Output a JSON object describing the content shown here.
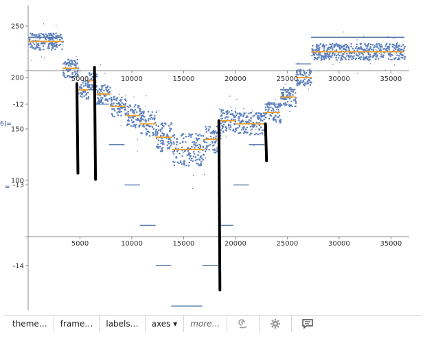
{
  "side_label": "6]=",
  "side_mark": "=",
  "colors": {
    "scatter": "#5b7fbf",
    "mean": "#f0a030",
    "step": "#4a6fa5",
    "annotation": "#000000",
    "axis": "#888888"
  },
  "chart_data": [
    {
      "type": "scatter",
      "title": "",
      "xlabel": "",
      "ylabel": "",
      "xlim": [
        0,
        36500
      ],
      "ylim": [
        94,
        262
      ],
      "y_ticks": [
        {
          "value": 100,
          "label": "100"
        },
        {
          "value": 150,
          "label": "150"
        },
        {
          "value": 200,
          "label": "200"
        },
        {
          "value": 250,
          "label": "250"
        }
      ],
      "x_ticks": [
        {
          "value": 5000,
          "label": "5000"
        },
        {
          "value": 10000,
          "label": "10000"
        },
        {
          "value": 15000,
          "label": "15000"
        },
        {
          "value": 20000,
          "label": "20000"
        },
        {
          "value": 25000,
          "label": "25000"
        },
        {
          "value": 30000,
          "label": "30000"
        },
        {
          "value": 35000,
          "label": "35000"
        }
      ],
      "segments": [
        {
          "x0": 0,
          "x1": 3300,
          "mean": 235,
          "spread": 8
        },
        {
          "x0": 3300,
          "x1": 4800,
          "mean": 209,
          "spread": 9
        },
        {
          "x0": 4800,
          "x1": 5800,
          "mean": 188,
          "spread": 9
        },
        {
          "x0": 5800,
          "x1": 6600,
          "mean": 197,
          "spread": 9
        },
        {
          "x0": 6600,
          "x1": 7900,
          "mean": 184,
          "spread": 9
        },
        {
          "x0": 7900,
          "x1": 9400,
          "mean": 172,
          "spread": 10
        },
        {
          "x0": 9400,
          "x1": 10800,
          "mean": 163,
          "spread": 11
        },
        {
          "x0": 10800,
          "x1": 12300,
          "mean": 155,
          "spread": 12
        },
        {
          "x0": 12300,
          "x1": 13900,
          "mean": 142,
          "spread": 14
        },
        {
          "x0": 13900,
          "x1": 17000,
          "mean": 130,
          "spread": 16
        },
        {
          "x0": 17000,
          "x1": 18500,
          "mean": 140,
          "spread": 13
        },
        {
          "x0": 18500,
          "x1": 20000,
          "mean": 158,
          "spread": 11
        },
        {
          "x0": 20000,
          "x1": 22800,
          "mean": 155,
          "spread": 11
        },
        {
          "x0": 22800,
          "x1": 24300,
          "mean": 166,
          "spread": 10
        },
        {
          "x0": 24300,
          "x1": 25800,
          "mean": 181,
          "spread": 9
        },
        {
          "x0": 25800,
          "x1": 27300,
          "mean": 200,
          "spread": 8
        },
        {
          "x0": 27300,
          "x1": 36300,
          "mean": 225,
          "spread": 8
        }
      ]
    },
    {
      "type": "line",
      "title": "",
      "xlabel": "",
      "ylabel": "",
      "xlim": [
        0,
        36500
      ],
      "ylim": [
        -14.55,
        -11.55
      ],
      "y_ticks": [
        {
          "value": -12,
          "label": "-12"
        },
        {
          "value": -13,
          "label": "-13"
        },
        {
          "value": -14,
          "label": "-14"
        }
      ],
      "x_ticks": [
        {
          "value": 5000,
          "label": "5000"
        },
        {
          "value": 10000,
          "label": "10000"
        },
        {
          "value": 15000,
          "label": "15000"
        },
        {
          "value": 20000,
          "label": "20000"
        },
        {
          "value": 25000,
          "label": "25000"
        },
        {
          "value": 30000,
          "label": "30000"
        },
        {
          "value": 35000,
          "label": "35000"
        }
      ],
      "steps": [
        {
          "x0": 0,
          "x1": 3300,
          "y": -11.17
        },
        {
          "x0": 3300,
          "x1": 4800,
          "y": -11.5
        },
        {
          "x0": 4800,
          "x1": 6300,
          "y": -11.82
        },
        {
          "x0": 6300,
          "x1": 7800,
          "y": -12.0
        },
        {
          "x0": 7800,
          "x1": 9300,
          "y": -12.5
        },
        {
          "x0": 9300,
          "x1": 10800,
          "y": -13.0
        },
        {
          "x0": 10800,
          "x1": 12300,
          "y": -13.5
        },
        {
          "x0": 12300,
          "x1": 13800,
          "y": -14.0
        },
        {
          "x0": 13800,
          "x1": 16800,
          "y": -14.5
        },
        {
          "x0": 16800,
          "x1": 18300,
          "y": -14.0
        },
        {
          "x0": 18300,
          "x1": 19800,
          "y": -13.5
        },
        {
          "x0": 19800,
          "x1": 21300,
          "y": -13.0
        },
        {
          "x0": 21300,
          "x1": 22800,
          "y": -12.5
        },
        {
          "x0": 22800,
          "x1": 24300,
          "y": -12.0
        },
        {
          "x0": 24300,
          "x1": 25800,
          "y": -11.82
        },
        {
          "x0": 25800,
          "x1": 27300,
          "y": -11.5
        },
        {
          "x0": 27300,
          "x1": 36300,
          "y": -11.17
        }
      ]
    }
  ],
  "annotations": {
    "drawn_lines": [
      {
        "x": 4700,
        "y_top": 194,
        "y_bottom": 107
      },
      {
        "x": 6400,
        "y_top": 210,
        "y_bottom": 101
      },
      {
        "x": 18400,
        "y_top": 158,
        "y_bottom": -14.3
      },
      {
        "x": 22900,
        "y_top": 155,
        "y_bottom": -12.7
      }
    ]
  },
  "toolbar": {
    "buttons": [
      "theme…",
      "frame…",
      "labels…",
      "axes ▾",
      "more…"
    ],
    "icons": [
      "spiral-icon",
      "gear-icon",
      "comment-icon"
    ]
  }
}
